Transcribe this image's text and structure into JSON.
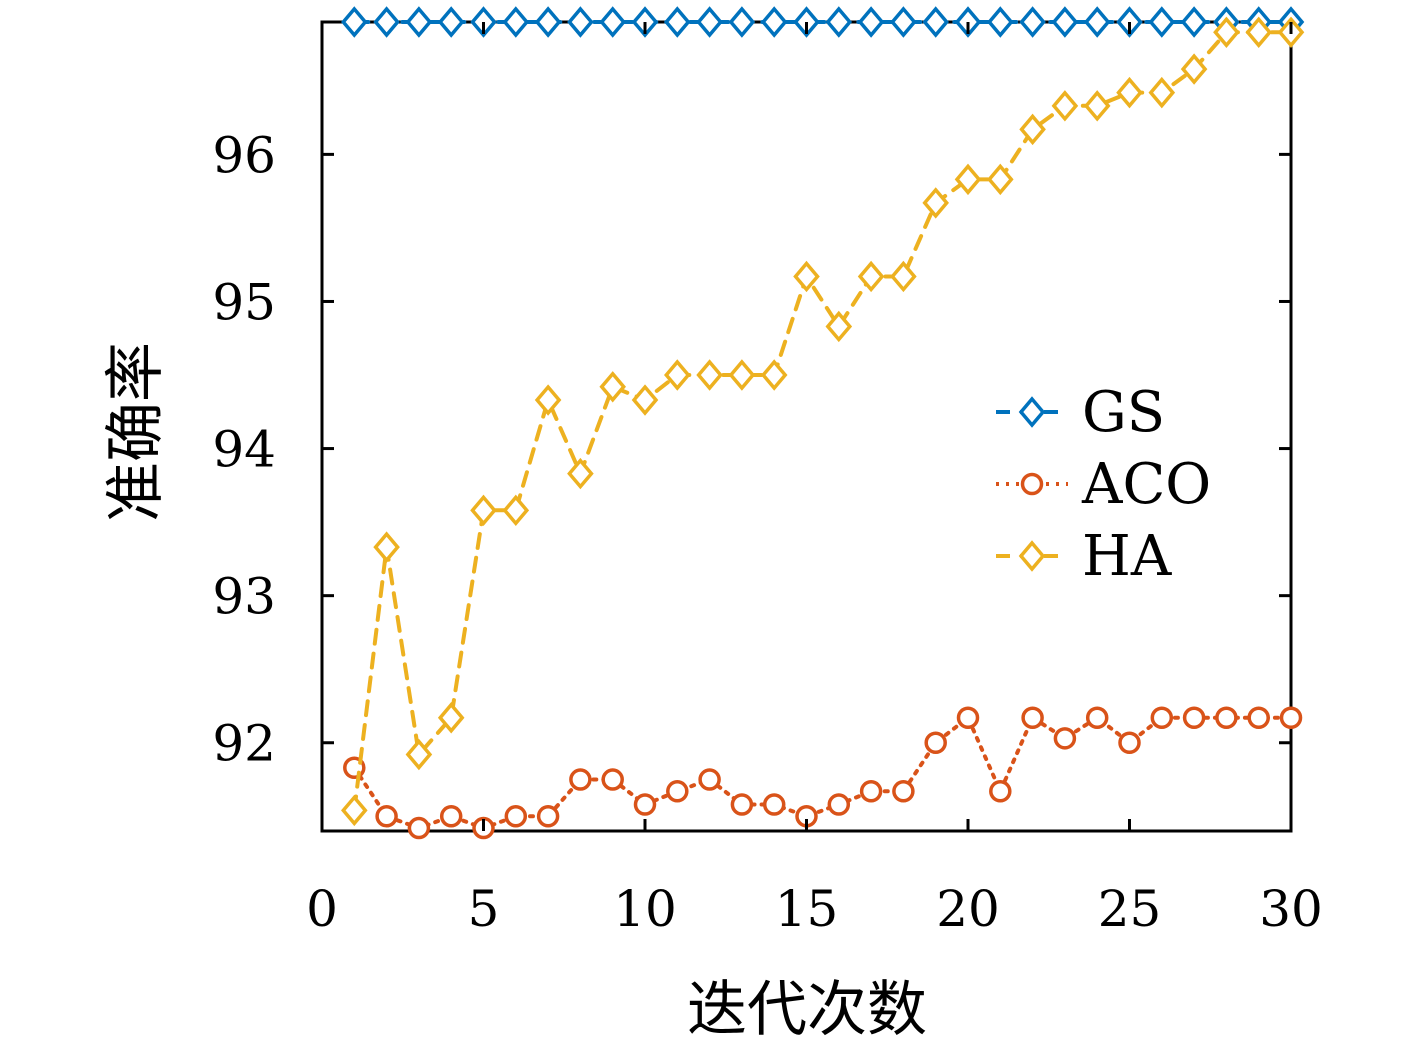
{
  "chart_data": {
    "type": "line",
    "title": "",
    "xlabel": "迭代次数",
    "ylabel": "准确率",
    "xlim": [
      0,
      30
    ],
    "ylim": [
      91.4,
      96.9
    ],
    "xticks": [
      0,
      5,
      10,
      15,
      20,
      25,
      30
    ],
    "yticks": [
      92,
      93,
      94,
      95,
      96
    ],
    "grid": false,
    "legend_position": "right",
    "x": [
      1,
      2,
      3,
      4,
      5,
      6,
      7,
      8,
      9,
      10,
      11,
      12,
      13,
      14,
      15,
      16,
      17,
      18,
      19,
      20,
      21,
      22,
      23,
      24,
      25,
      26,
      27,
      28,
      29,
      30
    ],
    "series": [
      {
        "name": "GS",
        "color": "#0072BD",
        "marker": "diamond",
        "line_style": "dashed",
        "values": [
          96.9,
          96.9,
          96.9,
          96.9,
          96.9,
          96.9,
          96.9,
          96.9,
          96.9,
          96.9,
          96.9,
          96.9,
          96.9,
          96.9,
          96.9,
          96.9,
          96.9,
          96.9,
          96.9,
          96.9,
          96.9,
          96.9,
          96.9,
          96.9,
          96.9,
          96.9,
          96.9,
          96.9,
          96.9,
          96.9
        ]
      },
      {
        "name": "ACO",
        "color": "#D95319",
        "marker": "circle",
        "line_style": "dotted",
        "values": [
          91.83,
          91.5,
          91.42,
          91.5,
          91.42,
          91.5,
          91.5,
          91.75,
          91.75,
          91.58,
          91.67,
          91.75,
          91.58,
          91.58,
          91.5,
          91.58,
          91.67,
          91.67,
          92.0,
          92.17,
          91.67,
          92.17,
          92.03,
          92.17,
          92.0,
          92.17,
          92.17,
          92.17,
          92.17,
          92.17
        ]
      },
      {
        "name": "HA",
        "color": "#EDB120",
        "marker": "diamond",
        "line_style": "dashed",
        "values": [
          91.54,
          93.33,
          91.92,
          92.17,
          93.58,
          93.58,
          94.33,
          93.83,
          94.42,
          94.33,
          94.5,
          94.5,
          94.5,
          94.5,
          95.17,
          94.83,
          95.17,
          95.17,
          95.67,
          95.83,
          95.83,
          96.17,
          96.33,
          96.33,
          96.42,
          96.42,
          96.58,
          96.83,
          96.83,
          96.83
        ]
      }
    ]
  }
}
